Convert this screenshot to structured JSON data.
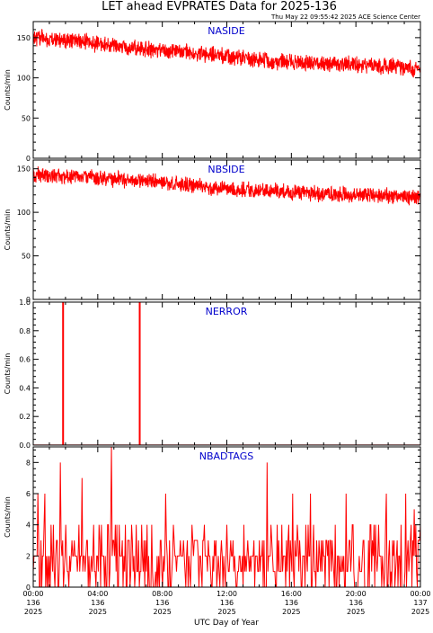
{
  "title": "LET ahead EVPRATES Data for 2025-136",
  "timestamp": "Thu May 22 09:55:42 2025 ACE Science Center",
  "xlabel": "UTC Day of Year",
  "colors": {
    "series": "#ff0000",
    "panel_label": "#0000cc",
    "axes": "#000000"
  },
  "chart_data": [
    {
      "type": "line",
      "series": [
        {
          "name": "NASIDE"
        }
      ],
      "ylabel": "Counts/min",
      "ylim": [
        0,
        170
      ],
      "yticks": [
        0,
        50,
        100,
        150
      ],
      "xlim": [
        "00:00",
        "24:00"
      ],
      "trend": [
        [
          0,
          150
        ],
        [
          3,
          145
        ],
        [
          6,
          137
        ],
        [
          9,
          133
        ],
        [
          12,
          126
        ],
        [
          15,
          121
        ],
        [
          18,
          117
        ],
        [
          21,
          116
        ],
        [
          23,
          113
        ],
        [
          24,
          110
        ]
      ],
      "noise": 8
    },
    {
      "type": "line",
      "series": [
        {
          "name": "NBSIDE"
        }
      ],
      "ylabel": "Counts/min",
      "ylim": [
        0,
        160
      ],
      "yticks": [
        0,
        50,
        100,
        150
      ],
      "xlim": [
        "00:00",
        "24:00"
      ],
      "trend": [
        [
          0,
          143
        ],
        [
          3,
          141
        ],
        [
          6,
          137
        ],
        [
          9,
          133
        ],
        [
          12,
          127
        ],
        [
          15,
          124
        ],
        [
          18,
          121
        ],
        [
          21,
          120
        ],
        [
          24,
          116
        ]
      ],
      "noise": 7
    },
    {
      "type": "line",
      "series": [
        {
          "name": "NERROR"
        }
      ],
      "ylabel": "Counts/min",
      "ylim": [
        0,
        1.0
      ],
      "yticks": [
        0.0,
        0.2,
        0.4,
        0.6,
        0.8,
        1.0
      ],
      "xlim": [
        "00:00",
        "24:00"
      ],
      "spikes": [
        [
          1.85,
          1
        ],
        [
          6.6,
          1
        ]
      ]
    },
    {
      "type": "line",
      "series": [
        {
          "name": "NBADTAGS"
        }
      ],
      "ylabel": "Counts/min",
      "ylim": [
        0,
        9
      ],
      "yticks": [
        0,
        2,
        4,
        6,
        8
      ],
      "xlim": [
        "00:00",
        "24:00"
      ],
      "discrete_range": [
        0,
        4
      ],
      "spikes": [
        [
          0.7,
          6
        ],
        [
          0.3,
          6
        ],
        [
          1.7,
          8
        ],
        [
          3.0,
          7
        ],
        [
          4.85,
          9
        ],
        [
          8.2,
          6
        ],
        [
          14.5,
          8
        ],
        [
          16.1,
          6
        ],
        [
          17.2,
          6
        ],
        [
          19.4,
          6
        ],
        [
          21.9,
          6
        ],
        [
          23.1,
          6
        ],
        [
          23.6,
          5
        ]
      ]
    }
  ],
  "x_axis": {
    "ticks": [
      {
        "hour": 0,
        "time": "00:00",
        "doy": "136",
        "year": "2025"
      },
      {
        "hour": 4,
        "time": "04:00",
        "doy": "136",
        "year": "2025"
      },
      {
        "hour": 8,
        "time": "08:00",
        "doy": "136",
        "year": "2025"
      },
      {
        "hour": 12,
        "time": "12:00",
        "doy": "136",
        "year": "2025"
      },
      {
        "hour": 16,
        "time": "16:00",
        "doy": "136",
        "year": "2025"
      },
      {
        "hour": 20,
        "time": "20:00",
        "doy": "136",
        "year": "2025"
      },
      {
        "hour": 24,
        "time": "00:00",
        "doy": "137",
        "year": "2025"
      }
    ]
  }
}
